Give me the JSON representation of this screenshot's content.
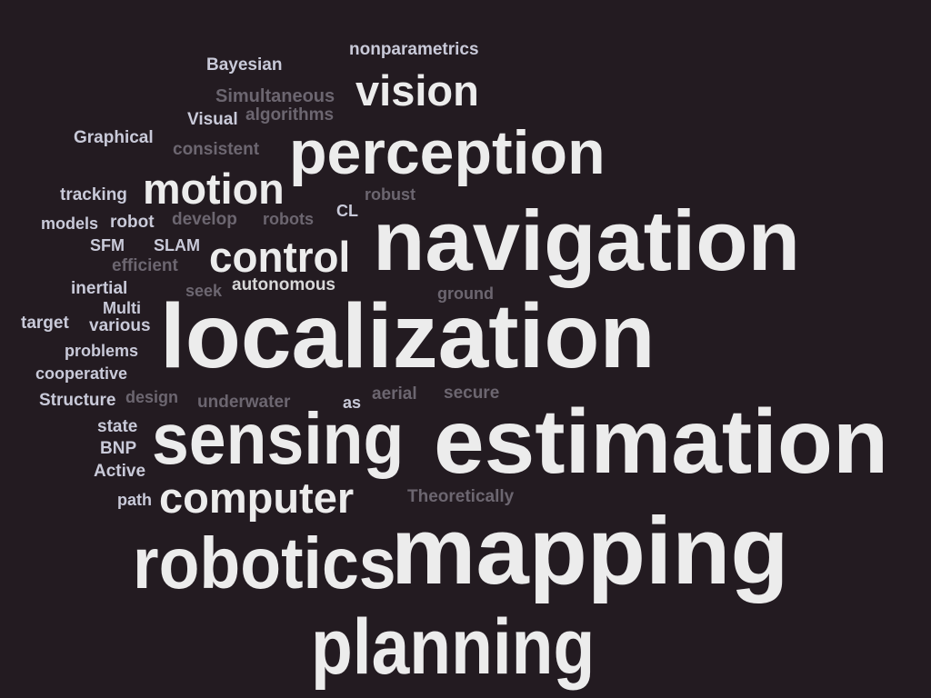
{
  "word_cloud": {
    "words": [
      {
        "key": "nonparametrics",
        "text": "nonparametrics",
        "tone": "lil"
      },
      {
        "key": "bayesian",
        "text": "Bayesian",
        "tone": "lil"
      },
      {
        "key": "vision",
        "text": "vision",
        "tone": "big"
      },
      {
        "key": "simultaneous",
        "text": "Simultaneous",
        "tone": "dim"
      },
      {
        "key": "visual",
        "text": "Visual",
        "tone": "lil"
      },
      {
        "key": "algorithms",
        "text": "algorithms",
        "tone": "dim"
      },
      {
        "key": "graphical",
        "text": "Graphical",
        "tone": "lil"
      },
      {
        "key": "consistent",
        "text": "consistent",
        "tone": "dim"
      },
      {
        "key": "perception",
        "text": "perception",
        "tone": "big"
      },
      {
        "key": "tracking",
        "text": "tracking",
        "tone": "lil"
      },
      {
        "key": "motion",
        "text": "motion",
        "tone": "big"
      },
      {
        "key": "robust",
        "text": "robust",
        "tone": "dim"
      },
      {
        "key": "cl",
        "text": "CL",
        "tone": "lil"
      },
      {
        "key": "models",
        "text": "models",
        "tone": "lil"
      },
      {
        "key": "robot",
        "text": "robot",
        "tone": "lil"
      },
      {
        "key": "develop",
        "text": "develop",
        "tone": "dim"
      },
      {
        "key": "robots",
        "text": "robots",
        "tone": "dim"
      },
      {
        "key": "navigation",
        "text": "navigation",
        "tone": "big"
      },
      {
        "key": "sfm",
        "text": "SFM",
        "tone": "lil"
      },
      {
        "key": "slam",
        "text": "SLAM",
        "tone": "lil"
      },
      {
        "key": "control",
        "text": "control",
        "tone": "big"
      },
      {
        "key": "efficient",
        "text": "efficient",
        "tone": "dim"
      },
      {
        "key": "inertial",
        "text": "inertial",
        "tone": "lil"
      },
      {
        "key": "seek",
        "text": "seek",
        "tone": "dim"
      },
      {
        "key": "autonomous",
        "text": "autonomous",
        "tone": "mid"
      },
      {
        "key": "ground",
        "text": "ground",
        "tone": "dim"
      },
      {
        "key": "multi",
        "text": "Multi",
        "tone": "lil"
      },
      {
        "key": "target",
        "text": "target",
        "tone": "lil"
      },
      {
        "key": "various",
        "text": "various",
        "tone": "lil"
      },
      {
        "key": "localization",
        "text": "localization",
        "tone": "big"
      },
      {
        "key": "problems",
        "text": "problems",
        "tone": "lil"
      },
      {
        "key": "cooperative",
        "text": "cooperative",
        "tone": "lil"
      },
      {
        "key": "structure",
        "text": "Structure",
        "tone": "lil"
      },
      {
        "key": "design",
        "text": "design",
        "tone": "dim"
      },
      {
        "key": "underwater",
        "text": "underwater",
        "tone": "dim"
      },
      {
        "key": "as",
        "text": "as",
        "tone": "lil"
      },
      {
        "key": "aerial",
        "text": "aerial",
        "tone": "dim"
      },
      {
        "key": "secure",
        "text": "secure",
        "tone": "dim"
      },
      {
        "key": "state",
        "text": "state",
        "tone": "lil"
      },
      {
        "key": "sensing",
        "text": "sensing",
        "tone": "big"
      },
      {
        "key": "estimation",
        "text": "estimation",
        "tone": "big"
      },
      {
        "key": "bnp",
        "text": "BNP",
        "tone": "lil"
      },
      {
        "key": "active",
        "text": "Active",
        "tone": "lil"
      },
      {
        "key": "path",
        "text": "path",
        "tone": "lil"
      },
      {
        "key": "computer",
        "text": "computer",
        "tone": "big"
      },
      {
        "key": "theoretically",
        "text": "Theoretically",
        "tone": "dim"
      },
      {
        "key": "robotics",
        "text": "robotics",
        "tone": "big"
      },
      {
        "key": "mapping",
        "text": "mapping",
        "tone": "big"
      },
      {
        "key": "planning",
        "text": "planning",
        "tone": "big"
      }
    ]
  }
}
